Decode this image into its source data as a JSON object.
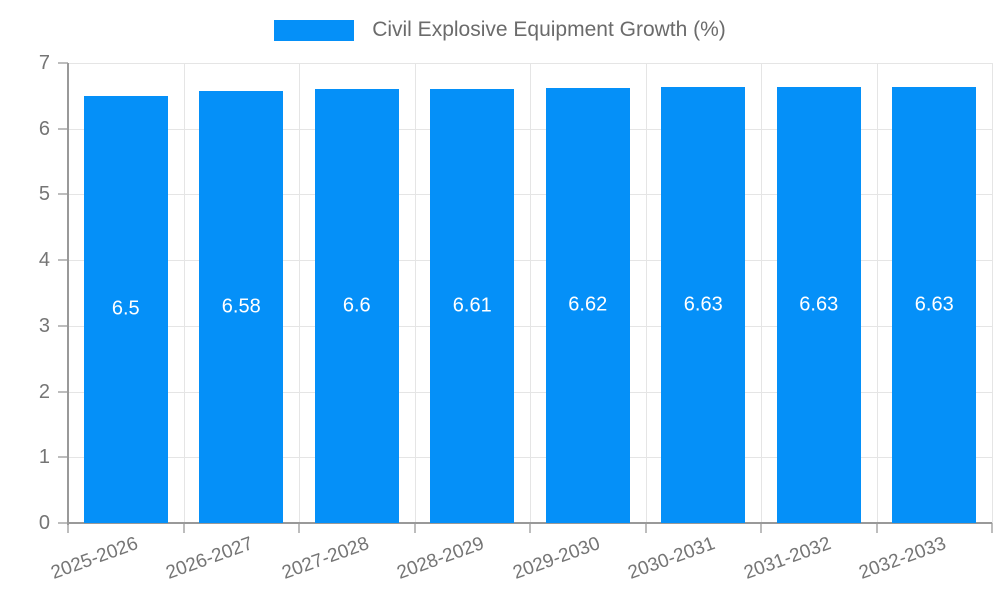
{
  "chart_data": {
    "type": "bar",
    "title": "Civil Explosive Equipment Growth (%)",
    "categories": [
      "2025-2026",
      "2026-2027",
      "2027-2028",
      "2028-2029",
      "2029-2030",
      "2030-2031",
      "2031-2032",
      "2032-2033"
    ],
    "values": [
      6.5,
      6.58,
      6.6,
      6.61,
      6.62,
      6.63,
      6.63,
      6.63
    ],
    "value_labels": [
      "6.5",
      "6.58",
      "6.6",
      "6.61",
      "6.62",
      "6.63",
      "6.63",
      "6.63"
    ],
    "xlabel": "",
    "ylabel": "",
    "ylim": [
      0,
      7
    ],
    "yticks": [
      0,
      1,
      2,
      3,
      4,
      5,
      6,
      7
    ],
    "grid": true,
    "legend_position": "top-center",
    "bar_labels_inside": true,
    "x_label_rotation_deg": -20,
    "colors": {
      "bar": "#0590f8",
      "grid_line": "#e5e5e5",
      "axis_line": "#999999",
      "tick_mark": "#bdbdbd",
      "tick_text": "#757575",
      "legend_text": "#6b6b6b",
      "bar_label_text": "#ffffff",
      "background": "#ffffff"
    }
  }
}
